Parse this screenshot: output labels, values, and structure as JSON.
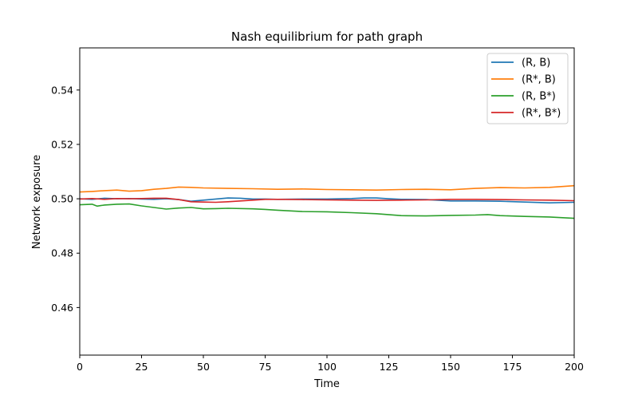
{
  "chart_data": {
    "type": "line",
    "title": "Nash equilibrium for path graph",
    "xlabel": "Time",
    "ylabel": "Network exposure",
    "xlim": [
      0,
      200
    ],
    "ylim": [
      0.4425,
      0.5555
    ],
    "xticks": [
      0,
      25,
      50,
      75,
      100,
      125,
      150,
      175,
      200
    ],
    "xtick_labels": [
      "0",
      "25",
      "50",
      "75",
      "100",
      "125",
      "150",
      "175",
      "200"
    ],
    "yticks": [
      0.46,
      0.48,
      0.5,
      0.52,
      0.54
    ],
    "ytick_labels": [
      "0.46",
      "0.48",
      "0.50",
      "0.52",
      "0.54"
    ],
    "grid": false,
    "legend_position": "top-right",
    "series": [
      {
        "name": "(R, B)",
        "color": "#1f77b4",
        "points": [
          [
            0,
            0.5
          ],
          [
            5,
            0.4998
          ],
          [
            10,
            0.5002
          ],
          [
            15,
            0.5
          ],
          [
            20,
            0.5001
          ],
          [
            25,
            0.4999
          ],
          [
            30,
            0.4998
          ],
          [
            35,
            0.5
          ],
          [
            40,
            0.4997
          ],
          [
            45,
            0.4991
          ],
          [
            50,
            0.4995
          ],
          [
            55,
            0.4999
          ],
          [
            60,
            0.5003
          ],
          [
            65,
            0.5002
          ],
          [
            70,
            0.4999
          ],
          [
            75,
            0.4999
          ],
          [
            80,
            0.4998
          ],
          [
            90,
            0.4999
          ],
          [
            100,
            0.4999
          ],
          [
            110,
            0.5001
          ],
          [
            115,
            0.5003
          ],
          [
            120,
            0.5003
          ],
          [
            125,
            0.5
          ],
          [
            130,
            0.4998
          ],
          [
            140,
            0.4997
          ],
          [
            150,
            0.4992
          ],
          [
            160,
            0.4992
          ],
          [
            170,
            0.4991
          ],
          [
            180,
            0.4988
          ],
          [
            190,
            0.4985
          ],
          [
            200,
            0.4987
          ]
        ]
      },
      {
        "name": "(R*, B)",
        "color": "#ff7f0e",
        "points": [
          [
            0,
            0.5025
          ],
          [
            5,
            0.5027
          ],
          [
            10,
            0.503
          ],
          [
            15,
            0.5032
          ],
          [
            20,
            0.5028
          ],
          [
            25,
            0.503
          ],
          [
            30,
            0.5035
          ],
          [
            35,
            0.5038
          ],
          [
            40,
            0.5043
          ],
          [
            45,
            0.5042
          ],
          [
            50,
            0.504
          ],
          [
            60,
            0.5038
          ],
          [
            70,
            0.5037
          ],
          [
            80,
            0.5035
          ],
          [
            90,
            0.5036
          ],
          [
            100,
            0.5034
          ],
          [
            110,
            0.5033
          ],
          [
            120,
            0.5032
          ],
          [
            130,
            0.5034
          ],
          [
            140,
            0.5035
          ],
          [
            150,
            0.5033
          ],
          [
            160,
            0.5038
          ],
          [
            170,
            0.5041
          ],
          [
            180,
            0.504
          ],
          [
            190,
            0.5042
          ],
          [
            200,
            0.5048
          ]
        ]
      },
      {
        "name": "(R, B*)",
        "color": "#2ca02c",
        "points": [
          [
            0,
            0.4978
          ],
          [
            5,
            0.498
          ],
          [
            7,
            0.4973
          ],
          [
            10,
            0.4977
          ],
          [
            15,
            0.498
          ],
          [
            20,
            0.4981
          ],
          [
            25,
            0.4974
          ],
          [
            30,
            0.4968
          ],
          [
            35,
            0.4962
          ],
          [
            40,
            0.4966
          ],
          [
            45,
            0.4968
          ],
          [
            50,
            0.4963
          ],
          [
            55,
            0.4964
          ],
          [
            60,
            0.4965
          ],
          [
            70,
            0.4963
          ],
          [
            75,
            0.4961
          ],
          [
            80,
            0.4958
          ],
          [
            90,
            0.4953
          ],
          [
            100,
            0.4952
          ],
          [
            110,
            0.4949
          ],
          [
            120,
            0.4945
          ],
          [
            130,
            0.4938
          ],
          [
            140,
            0.4937
          ],
          [
            150,
            0.4939
          ],
          [
            160,
            0.494
          ],
          [
            165,
            0.4942
          ],
          [
            170,
            0.4938
          ],
          [
            180,
            0.4935
          ],
          [
            190,
            0.4933
          ],
          [
            200,
            0.4928
          ]
        ]
      },
      {
        "name": "(R*, B*)",
        "color": "#d62728",
        "points": [
          [
            0,
            0.4999
          ],
          [
            5,
            0.5001
          ],
          [
            10,
            0.4998
          ],
          [
            15,
            0.5001
          ],
          [
            20,
            0.5
          ],
          [
            25,
            0.5001
          ],
          [
            30,
            0.5002
          ],
          [
            35,
            0.5002
          ],
          [
            40,
            0.4997
          ],
          [
            45,
            0.4989
          ],
          [
            50,
            0.4988
          ],
          [
            55,
            0.4987
          ],
          [
            60,
            0.4989
          ],
          [
            70,
            0.4995
          ],
          [
            75,
            0.4998
          ],
          [
            80,
            0.4998
          ],
          [
            90,
            0.4997
          ],
          [
            100,
            0.4996
          ],
          [
            110,
            0.4995
          ],
          [
            120,
            0.4994
          ],
          [
            130,
            0.4995
          ],
          [
            140,
            0.4996
          ],
          [
            150,
            0.4998
          ],
          [
            160,
            0.4998
          ],
          [
            170,
            0.4997
          ],
          [
            180,
            0.4996
          ],
          [
            190,
            0.4995
          ],
          [
            200,
            0.4993
          ]
        ]
      }
    ]
  }
}
